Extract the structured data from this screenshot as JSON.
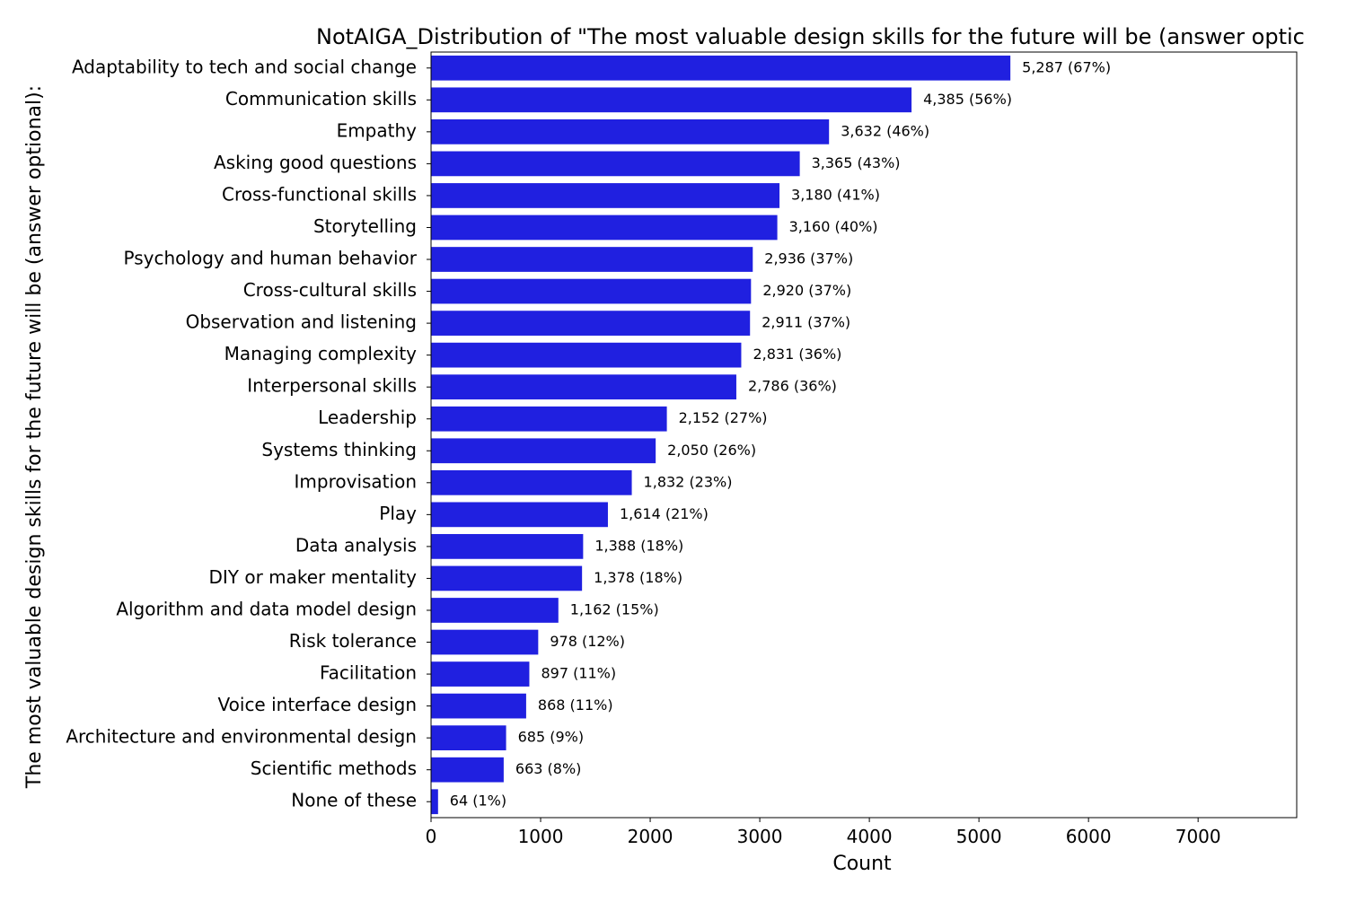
{
  "chart_data": {
    "type": "bar",
    "orientation": "horizontal",
    "title": "NotAIGA_Distribution of \"The most valuable design skills for the future will be (answer optic",
    "xlabel": "Count",
    "ylabel": "The most valuable design skills for the future will be (answer optional):",
    "xlim": [
      0,
      7900
    ],
    "xticks": [
      0,
      1000,
      2000,
      3000,
      4000,
      5000,
      6000,
      7000
    ],
    "xtick_labels": [
      "0",
      "1000",
      "2000",
      "3000",
      "4000",
      "5000",
      "6000",
      "7000"
    ],
    "grid": false,
    "legend": "none",
    "bar_color": "#2020e0",
    "categories": [
      "Adaptability to tech and social change",
      "Communication skills",
      "Empathy",
      "Asking good questions",
      "Cross-functional skills",
      "Storytelling",
      "Psychology and human behavior",
      "Cross-cultural skills",
      "Observation and listening",
      "Managing complexity",
      "Interpersonal skills",
      "Leadership",
      "Systems thinking",
      "Improvisation",
      "Play",
      "Data analysis",
      "DIY or maker mentality",
      "Algorithm and data model design",
      "Risk tolerance",
      "Facilitation",
      "Voice interface design",
      "Architecture and environmental design",
      "Scientific methods",
      "None of these"
    ],
    "values": [
      5287,
      4385,
      3632,
      3365,
      3180,
      3160,
      2936,
      2920,
      2911,
      2831,
      2786,
      2152,
      2050,
      1832,
      1614,
      1388,
      1378,
      1162,
      978,
      897,
      868,
      685,
      663,
      64
    ],
    "data_labels": [
      "5,287 (67%)",
      "4,385 (56%)",
      "3,632 (46%)",
      "3,365 (43%)",
      "3,180 (41%)",
      "3,160 (40%)",
      "2,936 (37%)",
      "2,920 (37%)",
      "2,911 (37%)",
      "2,831 (36%)",
      "2,786 (36%)",
      "2,152 (27%)",
      "2,050 (26%)",
      "1,832 (23%)",
      "1,614 (21%)",
      "1,388 (18%)",
      "1,378 (18%)",
      "1,162 (15%)",
      "978 (12%)",
      "897 (11%)",
      "868 (11%)",
      "685 (9%)",
      "663 (8%)",
      "64 (1%)"
    ]
  }
}
